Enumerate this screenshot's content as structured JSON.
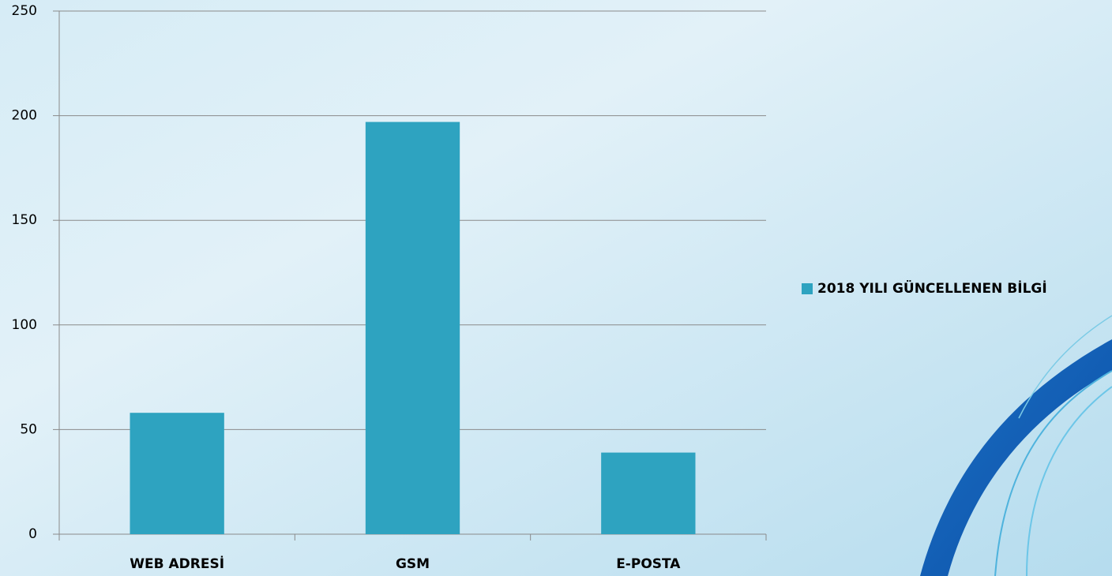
{
  "chart_data": {
    "type": "bar",
    "categories": [
      "WEB ADRESİ",
      "GSM",
      "E-POSTA"
    ],
    "series": [
      {
        "name": "2018 YILI GÜNCELLENEN BİLGİ",
        "color": "#2ea3c0",
        "values": [
          58,
          197,
          39
        ]
      }
    ],
    "ylim": [
      0,
      250
    ],
    "yticks": [
      0,
      50,
      100,
      150,
      200,
      250
    ],
    "grid": true,
    "legend": "right"
  }
}
